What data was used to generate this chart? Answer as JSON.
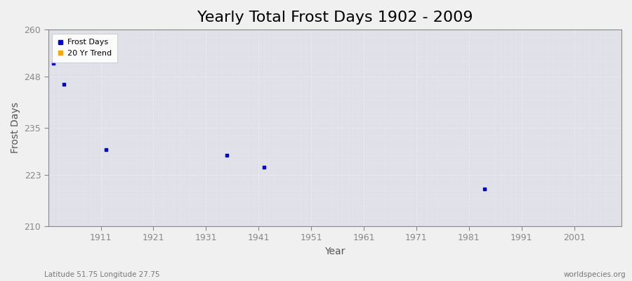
{
  "title": "Yearly Total Frost Days 1902 - 2009",
  "xlabel": "Year",
  "ylabel": "Frost Days",
  "xlim": [
    1901,
    2010
  ],
  "ylim": [
    210,
    260
  ],
  "yticks": [
    210,
    223,
    235,
    248,
    260
  ],
  "xticks": [
    1911,
    1921,
    1931,
    1941,
    1951,
    1961,
    1971,
    1981,
    1991,
    2001
  ],
  "figure_bg_color": "#f0f0f0",
  "plot_bg_color": "#e0e0e8",
  "grid_color": "#ffffff",
  "data_points": [
    {
      "year": 1902,
      "value": 251.5
    },
    {
      "year": 1904,
      "value": 246.0
    },
    {
      "year": 1912,
      "value": 229.5
    },
    {
      "year": 1935,
      "value": 228.0
    },
    {
      "year": 1942,
      "value": 225.0
    },
    {
      "year": 1984,
      "value": 219.5
    }
  ],
  "point_color": "#0000cc",
  "point_size": 6,
  "legend_frost_label": "Frost Days",
  "legend_trend_label": "20 Yr Trend",
  "legend_frost_color": "#0000cc",
  "legend_trend_color": "#ffa500",
  "subtitle_left": "Latitude 51.75 Longitude 27.75",
  "subtitle_right": "worldspecies.org",
  "title_fontsize": 16,
  "label_fontsize": 10,
  "tick_fontsize": 9,
  "tick_color": "#888888",
  "label_color": "#555555",
  "spine_color": "#888888"
}
